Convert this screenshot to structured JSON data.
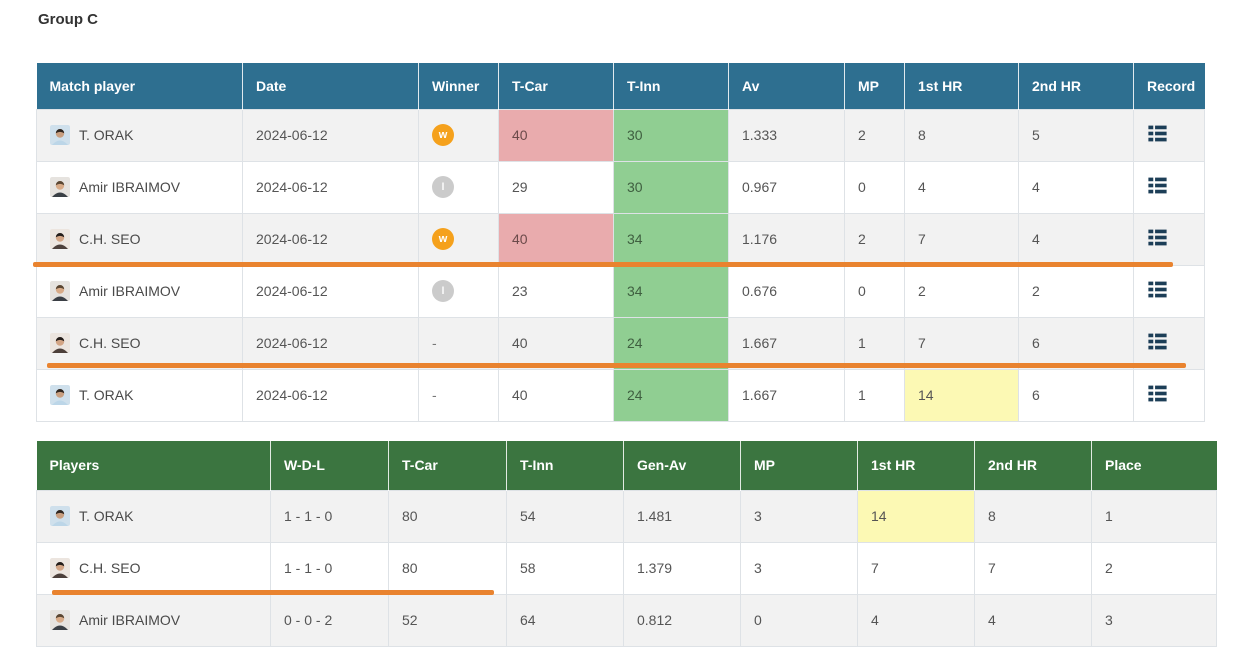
{
  "title": "Group C",
  "colors": {
    "match_header_bg": "#2e6f90",
    "standings_header_bg": "#3b7540",
    "row_stripe": "#f2f2f2",
    "hl_pink": "#e9abad",
    "hl_green": "#90ce92",
    "hl_yellow": "#fcf9b4",
    "badge_win": "#f5a11c",
    "badge_loss": "#cbcbcb",
    "annotation_orange": "#e9832f",
    "record_icon": "#1c3e57"
  },
  "avatars": {
    "T. ORAK": {
      "bg": "#cfe0ec",
      "hair": "#2f2620",
      "skin": "#c99f80",
      "shirt": "#bcd6e8"
    },
    "Amir IBRAIMOV": {
      "bg": "#e6e3df",
      "hair": "#5a4632",
      "skin": "#d8ab88",
      "shirt": "#3a3f45"
    },
    "C.H. SEO": {
      "bg": "#ece5df",
      "hair": "#241d1a",
      "skin": "#d3a585",
      "shirt": "#4c3f3a"
    }
  },
  "match_table": {
    "headers": [
      "Match player",
      "Date",
      "Winner",
      "T-Car",
      "T-Inn",
      "Av",
      "MP",
      "1st HR",
      "2nd HR",
      "Record"
    ],
    "rows": [
      {
        "player": "T. ORAK",
        "date": "2024-06-12",
        "winner": "W",
        "t_car": "40",
        "t_car_hl": "pink",
        "t_inn": "30",
        "t_inn_hl": "green",
        "av": "1.333",
        "mp": "2",
        "hr1": "8",
        "hr1_hl": "",
        "hr2": "5"
      },
      {
        "player": "Amir IBRAIMOV",
        "date": "2024-06-12",
        "winner": "L",
        "t_car": "29",
        "t_car_hl": "",
        "t_inn": "30",
        "t_inn_hl": "green",
        "av": "0.967",
        "mp": "0",
        "hr1": "4",
        "hr1_hl": "",
        "hr2": "4"
      },
      {
        "player": "C.H. SEO",
        "date": "2024-06-12",
        "winner": "W",
        "t_car": "40",
        "t_car_hl": "pink",
        "t_inn": "34",
        "t_inn_hl": "green",
        "av": "1.176",
        "mp": "2",
        "hr1": "7",
        "hr1_hl": "",
        "hr2": "4"
      },
      {
        "player": "Amir IBRAIMOV",
        "date": "2024-06-12",
        "winner": "L",
        "t_car": "23",
        "t_car_hl": "",
        "t_inn": "34",
        "t_inn_hl": "green",
        "av": "0.676",
        "mp": "0",
        "hr1": "2",
        "hr1_hl": "",
        "hr2": "2"
      },
      {
        "player": "C.H. SEO",
        "date": "2024-06-12",
        "winner": "-",
        "t_car": "40",
        "t_car_hl": "",
        "t_inn": "24",
        "t_inn_hl": "green",
        "av": "1.667",
        "mp": "1",
        "hr1": "7",
        "hr1_hl": "",
        "hr2": "6"
      },
      {
        "player": "T. ORAK",
        "date": "2024-06-12",
        "winner": "-",
        "t_car": "40",
        "t_car_hl": "",
        "t_inn": "24",
        "t_inn_hl": "green",
        "av": "1.667",
        "mp": "1",
        "hr1": "14",
        "hr1_hl": "yellow",
        "hr2": "6"
      }
    ]
  },
  "standings_table": {
    "headers": [
      "Players",
      "W-D-L",
      "T-Car",
      "T-Inn",
      "Gen-Av",
      "MP",
      "1st HR",
      "2nd HR",
      "Place"
    ],
    "rows": [
      {
        "player": "T. ORAK",
        "wdl": "1 - 1 - 0",
        "t_car": "80",
        "t_inn": "54",
        "gen_av": "1.481",
        "mp": "3",
        "hr1": "14",
        "hr1_hl": "yellow",
        "hr2": "8",
        "place": "1"
      },
      {
        "player": "C.H. SEO",
        "wdl": "1 - 1 - 0",
        "t_car": "80",
        "t_inn": "58",
        "gen_av": "1.379",
        "mp": "3",
        "hr1": "7",
        "hr1_hl": "",
        "hr2": "7",
        "place": "2"
      },
      {
        "player": "Amir IBRAIMOV",
        "wdl": "0 - 0 - 2",
        "t_car": "52",
        "t_inn": "64",
        "gen_av": "0.812",
        "mp": "0",
        "hr1": "4",
        "hr1_hl": "",
        "hr2": "4",
        "place": "3"
      }
    ]
  }
}
